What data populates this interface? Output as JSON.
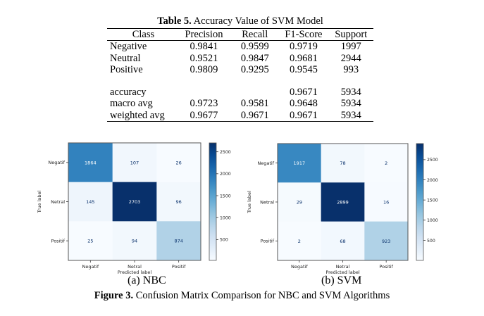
{
  "table": {
    "label": "Table 5.",
    "title": "Accuracy Value of SVM Model",
    "columns": [
      "Class",
      "Precision",
      "Recall",
      "F1-Score",
      "Support"
    ],
    "rows": [
      [
        "Negative",
        "0.9841",
        "0.9599",
        "0.9719",
        "1997"
      ],
      [
        "Neutral",
        "0.9521",
        "0.9847",
        "0.9681",
        "2944"
      ],
      [
        "Positive",
        "0.9809",
        "0.9295",
        "0.9545",
        "993"
      ]
    ],
    "summary_rows": [
      [
        "accuracy",
        "",
        "",
        "0.9671",
        "5934"
      ],
      [
        "macro avg",
        "0.9723",
        "0.9581",
        "0.9648",
        "5934"
      ],
      [
        "weighted avg",
        "0.9677",
        "0.9671",
        "0.9671",
        "5934"
      ]
    ]
  },
  "figure": {
    "label": "Figure 3.",
    "caption": "Confusion Matrix Comparison for NBC and SVM Algorithms",
    "subcaptions": [
      "(a) NBC",
      "(b) SVM"
    ]
  },
  "chart_data": [
    {
      "type": "heatmap",
      "title": "(a) NBC",
      "xlabel": "Predicted label",
      "ylabel": "True label",
      "x_categories": [
        "Negatif",
        "Netral",
        "Positif"
      ],
      "y_categories": [
        "Negatif",
        "Netral",
        "Positif"
      ],
      "values": [
        [
          1864,
          107,
          26
        ],
        [
          145,
          2703,
          96
        ],
        [
          25,
          94,
          874
        ]
      ],
      "colormap": "Blues",
      "colorbar": {
        "range": [
          25,
          2703
        ],
        "ticks": [
          500,
          1000,
          1500,
          2000,
          2500
        ],
        "tick_labels": [
          "500",
          "1000",
          "1500",
          "2000",
          "2500"
        ]
      }
    },
    {
      "type": "heatmap",
      "title": "(b) SVM",
      "xlabel": "Predicted label",
      "ylabel": "True label",
      "x_categories": [
        "Negatif",
        "Netral",
        "Positif"
      ],
      "y_categories": [
        "Negatif",
        "Netral",
        "Positif"
      ],
      "values": [
        [
          1917,
          78,
          2
        ],
        [
          29,
          2899,
          16
        ],
        [
          2,
          68,
          923
        ]
      ],
      "colormap": "Blues",
      "colorbar": {
        "range": [
          2,
          2899
        ],
        "ticks": [
          500,
          1000,
          1500,
          2000,
          2500
        ],
        "tick_labels": [
          "500",
          "1000",
          "1500",
          "2000",
          "2500"
        ]
      }
    }
  ]
}
